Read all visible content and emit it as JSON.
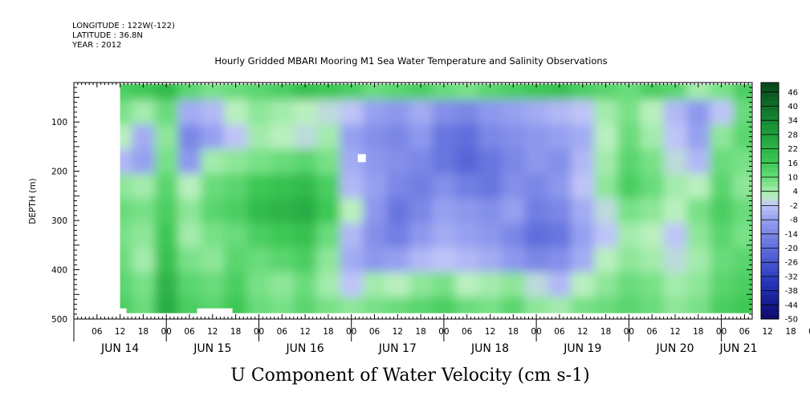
{
  "header": {
    "longitude": "LONGITUDE : 122W(-122)",
    "latitude": "LATITUDE : 36.8N",
    "year": "YEAR : 2012",
    "title": "Hourly Gridded MBARI Mooring M1 Sea Water Temperature and Salinity Observations"
  },
  "chart_data": {
    "type": "heatmap",
    "title": "Hourly Gridded MBARI Mooring M1 Sea Water Temperature and Salinity Observations",
    "xlabel": "U Component of Water Velocity (cm s-1)",
    "ylabel": "DEPTH (m)",
    "x_time_start": "2012-06-14 00:00",
    "x_time_end": "2012-06-21 08:00",
    "x_hour_ticks": [
      "06",
      "12",
      "18",
      "00",
      "06",
      "12",
      "18",
      "00",
      "06",
      "12",
      "18",
      "00",
      "06",
      "12",
      "18",
      "00",
      "06",
      "12",
      "18",
      "00",
      "06",
      "12",
      "18",
      "00",
      "06",
      "12",
      "18",
      "00",
      "06",
      "12",
      "18",
      "00"
    ],
    "x_day_labels": [
      "JUN 14",
      "JUN 15",
      "JUN 16",
      "JUN 17",
      "JUN 18",
      "JUN 19",
      "JUN 20",
      "JUN 21"
    ],
    "y_reversed": true,
    "ylim": [
      500,
      20
    ],
    "y_ticks": [
      100,
      200,
      300,
      400,
      500
    ],
    "colorbar_levels": [
      46,
      40,
      34,
      28,
      22,
      16,
      10,
      4,
      -2,
      -8,
      -14,
      -20,
      -26,
      -32,
      -38,
      -44,
      -50
    ],
    "colorbar_range": [
      -50,
      50
    ],
    "colors": {
      "strong_positive": "#0b5a22",
      "positive": "#3ecb5a",
      "weak_positive": "#a8ecb0",
      "weak_negative": "#b4b8f0",
      "negative": "#6f7bde",
      "strong_negative": "#0a0a6a"
    },
    "field_grid": {
      "time_columns": [
        "06-14 12",
        "06-14 18",
        "06-15 00",
        "06-15 06",
        "06-15 12",
        "06-15 18",
        "06-16 00",
        "06-16 06",
        "06-16 12",
        "06-16 18",
        "06-17 00",
        "06-17 06",
        "06-17 12",
        "06-17 18",
        "06-18 00",
        "06-18 06",
        "06-18 12",
        "06-18 18",
        "06-19 00",
        "06-19 06",
        "06-19 12",
        "06-19 18",
        "06-20 00",
        "06-20 06",
        "06-20 12",
        "06-20 18",
        "06-21 00",
        "06-21 06"
      ],
      "depth_rows": [
        30,
        80,
        130,
        180,
        230,
        280,
        330,
        380,
        430,
        480
      ],
      "values": [
        [
          14,
          16,
          20,
          12,
          8,
          10,
          12,
          14,
          18,
          16,
          14,
          10,
          12,
          14,
          10,
          8,
          12,
          14,
          16,
          18,
          14,
          12,
          10,
          14,
          12,
          4,
          8,
          14
        ],
        [
          8,
          4,
          10,
          -6,
          -4,
          2,
          6,
          4,
          2,
          0,
          -2,
          -8,
          -10,
          -6,
          -12,
          -14,
          -10,
          -8,
          -6,
          -4,
          -2,
          4,
          8,
          2,
          -4,
          -10,
          -2,
          10
        ],
        [
          2,
          -6,
          6,
          -14,
          -8,
          -2,
          4,
          2,
          0,
          4,
          -8,
          -12,
          -14,
          -10,
          -18,
          -20,
          -14,
          -12,
          -10,
          -8,
          -6,
          2,
          10,
          4,
          -2,
          -8,
          6,
          12
        ],
        [
          -4,
          -8,
          8,
          -10,
          4,
          6,
          8,
          10,
          12,
          8,
          -6,
          -10,
          -12,
          -14,
          -18,
          -22,
          -18,
          -14,
          -10,
          -12,
          -4,
          4,
          12,
          8,
          0,
          -4,
          10,
          8
        ],
        [
          6,
          4,
          12,
          2,
          10,
          12,
          16,
          18,
          20,
          14,
          -4,
          -8,
          -14,
          -16,
          -12,
          -16,
          -18,
          -12,
          -14,
          -10,
          -2,
          6,
          14,
          10,
          4,
          2,
          12,
          6
        ],
        [
          10,
          8,
          14,
          6,
          12,
          14,
          20,
          22,
          24,
          16,
          2,
          -10,
          -18,
          -14,
          -8,
          -10,
          -12,
          -8,
          -16,
          -14,
          -6,
          0,
          8,
          6,
          2,
          8,
          14,
          10
        ],
        [
          8,
          6,
          16,
          4,
          8,
          10,
          14,
          16,
          18,
          10,
          -4,
          -12,
          -16,
          -10,
          -6,
          -8,
          -10,
          -14,
          -20,
          -18,
          -8,
          -2,
          4,
          2,
          -2,
          6,
          12,
          8
        ],
        [
          10,
          4,
          18,
          8,
          6,
          12,
          10,
          12,
          14,
          6,
          -6,
          -10,
          -8,
          -4,
          -2,
          -4,
          -6,
          -10,
          -14,
          -12,
          -6,
          2,
          6,
          4,
          0,
          4,
          10,
          12
        ],
        [
          12,
          8,
          22,
          12,
          10,
          14,
          8,
          6,
          10,
          4,
          -2,
          4,
          2,
          6,
          8,
          2,
          4,
          6,
          0,
          -4,
          2,
          6,
          10,
          8,
          4,
          6,
          12,
          14
        ],
        [
          14,
          10,
          24,
          14,
          12,
          16,
          10,
          8,
          12,
          8,
          6,
          8,
          10,
          12,
          14,
          10,
          8,
          12,
          6,
          4,
          8,
          10,
          12,
          10,
          6,
          8,
          14,
          16
        ]
      ]
    }
  },
  "labels": {
    "y_axis": "DEPTH (m)",
    "x_axis": "U Component of Water Velocity (cm s-1)"
  }
}
